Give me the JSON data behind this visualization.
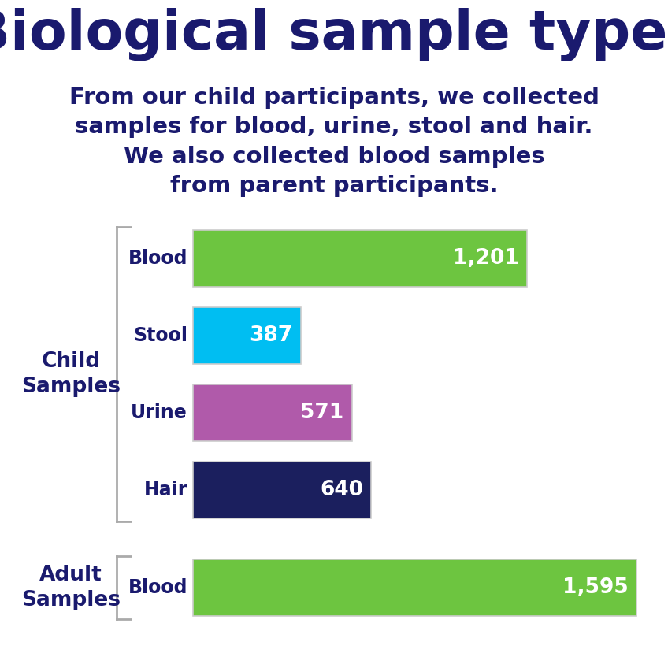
{
  "title": "Biological sample types",
  "subtitle1": "From our child participants, we collected\nsamples for blood, urine, stool and hair.",
  "subtitle2": "We also collected blood samples\nfrom parent participants.",
  "title_color": "#1a1a6e",
  "subtitle1_color": "#1a1a6e",
  "subtitle2_color": "#1a1a6e",
  "background_color": "#ffffff",
  "child_label": "Child\nSamples",
  "adult_label": "Adult\nSamples",
  "child_samples": [
    {
      "label": "Blood",
      "value": 1201,
      "display": "1,201",
      "color": "#6dc540"
    },
    {
      "label": "Stool",
      "value": 387,
      "display": "387",
      "color": "#00bef2"
    },
    {
      "label": "Urine",
      "value": 571,
      "display": "571",
      "color": "#b05aaa"
    },
    {
      "label": "Hair",
      "value": 640,
      "display": "640",
      "color": "#1b1f5e"
    }
  ],
  "adult_samples": [
    {
      "label": "Blood",
      "value": 1595,
      "display": "1,595",
      "color": "#6dc540"
    }
  ],
  "max_value": 1595,
  "bar_text_color": "#ffffff",
  "label_color": "#1a1a6e",
  "bracket_color": "#aaaaaa"
}
